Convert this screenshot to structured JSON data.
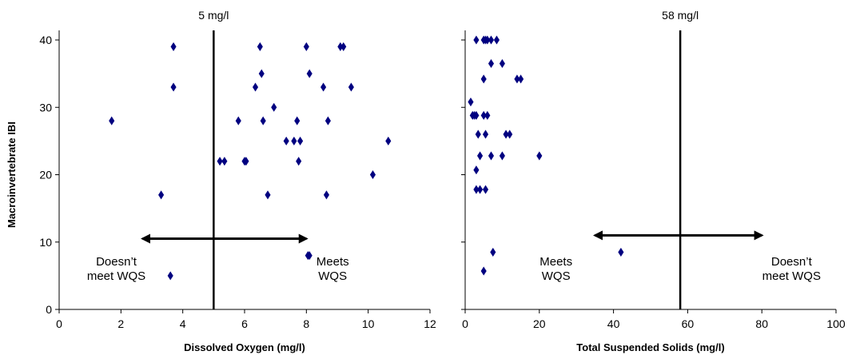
{
  "colors": {
    "marker": "#000080",
    "axis": "#000000"
  },
  "chart_data": [
    {
      "type": "scatter",
      "title": "",
      "xlabel": "Dissolved Oxygen (mg/l)",
      "ylabel": "Macroinvertebrate IBI",
      "xlim": [
        0,
        12
      ],
      "ylim": [
        0,
        40
      ],
      "xticks": [
        "0",
        "2",
        "4",
        "6",
        "8",
        "10",
        "12"
      ],
      "yticks": [
        "0",
        "10",
        "20",
        "30",
        "40"
      ],
      "grid": false,
      "marker": "diamond",
      "threshold": {
        "x": 5,
        "label": "5 mg/l"
      },
      "arrow": {
        "x_from": 2.7,
        "x_to": 8.0,
        "y": 10.5
      },
      "annotations": {
        "left": [
          "Doesn’t",
          "meet WQS"
        ],
        "right": [
          "Meets",
          "WQS"
        ]
      },
      "points": [
        [
          1.7,
          28
        ],
        [
          3.3,
          17
        ],
        [
          3.6,
          5
        ],
        [
          3.7,
          39
        ],
        [
          3.7,
          33
        ],
        [
          5.2,
          22
        ],
        [
          5.35,
          22
        ],
        [
          5.8,
          28
        ],
        [
          6.0,
          22
        ],
        [
          6.05,
          22
        ],
        [
          6.35,
          33
        ],
        [
          6.5,
          39
        ],
        [
          6.55,
          35
        ],
        [
          6.6,
          28
        ],
        [
          6.75,
          17
        ],
        [
          6.95,
          30
        ],
        [
          7.35,
          25
        ],
        [
          7.6,
          25
        ],
        [
          7.7,
          28
        ],
        [
          7.75,
          22
        ],
        [
          7.8,
          25
        ],
        [
          8.0,
          39
        ],
        [
          8.05,
          8
        ],
        [
          8.1,
          35
        ],
        [
          8.1,
          8
        ],
        [
          8.55,
          33
        ],
        [
          8.7,
          28
        ],
        [
          8.65,
          17
        ],
        [
          9.1,
          39
        ],
        [
          9.2,
          39
        ],
        [
          9.45,
          33
        ],
        [
          10.15,
          20
        ],
        [
          10.65,
          25
        ]
      ]
    },
    {
      "type": "scatter",
      "title": "",
      "xlabel": "Total Suspended Solids (mg/l)",
      "ylabel": "",
      "xlim": [
        0,
        100
      ],
      "ylim": [
        0,
        40
      ],
      "xticks": [
        "0",
        "20",
        "40",
        "60",
        "80",
        "100"
      ],
      "grid": false,
      "marker": "diamond",
      "threshold": {
        "x": 58,
        "label": "58 mg/l"
      },
      "arrow": {
        "x_from": 35,
        "x_to": 80,
        "y": 11
      },
      "annotations": {
        "left": [
          "Meets",
          "WQS"
        ],
        "right": [
          "Doesn’t",
          "meet WQS"
        ]
      },
      "points": [
        [
          3,
          40
        ],
        [
          5,
          40
        ],
        [
          5.5,
          40
        ],
        [
          6,
          40
        ],
        [
          7,
          40
        ],
        [
          8.5,
          40
        ],
        [
          7,
          36.5
        ],
        [
          10,
          36.5
        ],
        [
          5,
          34.2
        ],
        [
          14,
          34.2
        ],
        [
          15,
          34.2
        ],
        [
          1.5,
          30.8
        ],
        [
          2,
          28.8
        ],
        [
          2.5,
          28.8
        ],
        [
          3,
          28.8
        ],
        [
          5,
          28.8
        ],
        [
          6,
          28.8
        ],
        [
          3.5,
          26
        ],
        [
          5.5,
          26
        ],
        [
          11,
          26
        ],
        [
          12,
          26
        ],
        [
          4,
          22.8
        ],
        [
          7,
          22.8
        ],
        [
          10,
          22.8
        ],
        [
          20,
          22.8
        ],
        [
          3,
          20.7
        ],
        [
          3,
          17.8
        ],
        [
          4,
          17.8
        ],
        [
          5.5,
          17.8
        ],
        [
          7.5,
          8.5
        ],
        [
          42,
          8.5
        ],
        [
          5,
          5.7
        ]
      ]
    }
  ]
}
